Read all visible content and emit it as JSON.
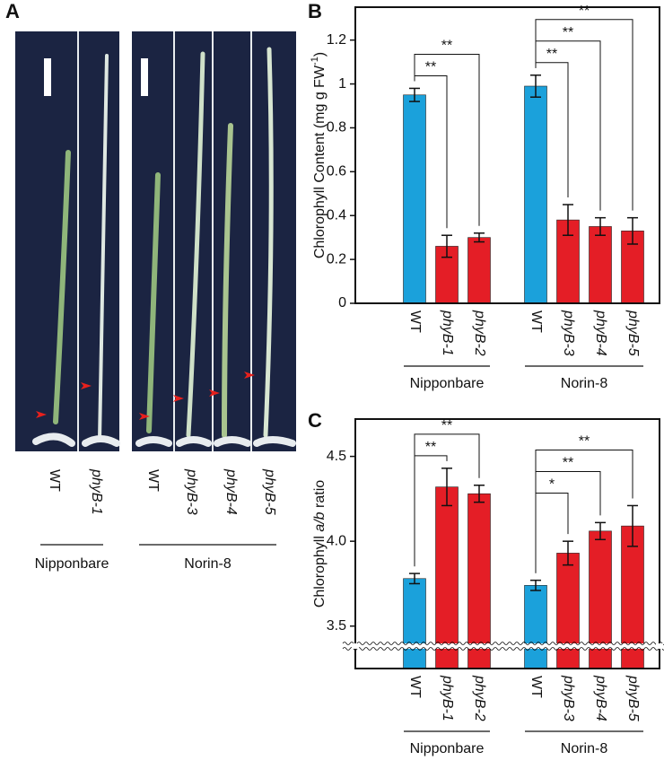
{
  "photo_panel": {
    "label": "A",
    "lanes": [
      "WT",
      "phyB-1",
      "WT",
      "phyB-3",
      "phyB-4",
      "phyB-5"
    ],
    "lane_italic": [
      false,
      true,
      false,
      true,
      true,
      true
    ],
    "groups": [
      {
        "name": "Nipponbare",
        "lanes": [
          0,
          1
        ]
      },
      {
        "name": "Norin-8",
        "lanes": [
          2,
          5
        ]
      }
    ]
  },
  "chart_data": [
    {
      "type": "bar",
      "panel": "B",
      "ylabel": [
        {
          "text": "Chlorophyll Content (mg g FW"
        },
        {
          "text": "-1",
          "sup": true
        },
        {
          "text": ")"
        }
      ],
      "categories": [
        "WT",
        "phyB-1",
        "phyB-2",
        "WT",
        "phyB-3",
        "phyB-4",
        "phyB-5"
      ],
      "category_italic": [
        false,
        true,
        true,
        false,
        true,
        true,
        true
      ],
      "groups": [
        {
          "name": "Nipponbare",
          "range": [
            0,
            2
          ]
        },
        {
          "name": "Norin-8",
          "range": [
            3,
            6
          ]
        }
      ],
      "values": [
        0.95,
        0.26,
        0.3,
        0.99,
        0.38,
        0.35,
        0.33
      ],
      "errors": [
        0.03,
        0.05,
        0.02,
        0.05,
        0.07,
        0.04,
        0.06
      ],
      "colors": [
        "#1ba1db",
        "#e41e26",
        "#e41e26",
        "#1ba1db",
        "#e41e26",
        "#e41e26",
        "#e41e26"
      ],
      "ylim": [
        0,
        1.35
      ],
      "yticks": [
        0,
        0.2,
        0.4,
        0.6,
        0.8,
        1.0,
        1.2
      ],
      "significance": [
        {
          "pair": [
            0,
            1
          ],
          "label": "**"
        },
        {
          "pair": [
            0,
            2
          ],
          "label": "**"
        },
        {
          "pair": [
            3,
            4
          ],
          "label": "**"
        },
        {
          "pair": [
            3,
            5
          ],
          "label": "**"
        },
        {
          "pair": [
            3,
            6
          ],
          "label": "**"
        }
      ]
    },
    {
      "type": "bar",
      "panel": "C",
      "ylabel": [
        {
          "text": "Chlorophyll "
        },
        {
          "text": "a/b",
          "italic": true
        },
        {
          "text": " ratio"
        }
      ],
      "categories": [
        "WT",
        "phyB-1",
        "phyB-2",
        "WT",
        "phyB-3",
        "phyB-4",
        "phyB-5"
      ],
      "category_italic": [
        false,
        true,
        true,
        false,
        true,
        true,
        true
      ],
      "groups": [
        {
          "name": "Nipponbare",
          "range": [
            0,
            2
          ]
        },
        {
          "name": "Norin-8",
          "range": [
            3,
            6
          ]
        }
      ],
      "values": [
        3.78,
        4.32,
        4.28,
        3.74,
        3.93,
        4.06,
        4.09
      ],
      "errors": [
        0.03,
        0.11,
        0.05,
        0.03,
        0.07,
        0.05,
        0.12
      ],
      "colors": [
        "#1ba1db",
        "#e41e26",
        "#e41e26",
        "#1ba1db",
        "#e41e26",
        "#e41e26",
        "#e41e26"
      ],
      "ylim": [
        3.25,
        4.72
      ],
      "yticks": [
        3.5,
        {
          "value": 4,
          "label": "4.0"
        },
        4.5
      ],
      "axis_break": true,
      "significance": [
        {
          "pair": [
            0,
            1
          ],
          "label": "**"
        },
        {
          "pair": [
            0,
            2
          ],
          "label": "**"
        },
        {
          "pair": [
            3,
            4
          ],
          "label": "*"
        },
        {
          "pair": [
            3,
            5
          ],
          "label": "**"
        },
        {
          "pair": [
            3,
            6
          ],
          "label": "**"
        }
      ]
    }
  ]
}
